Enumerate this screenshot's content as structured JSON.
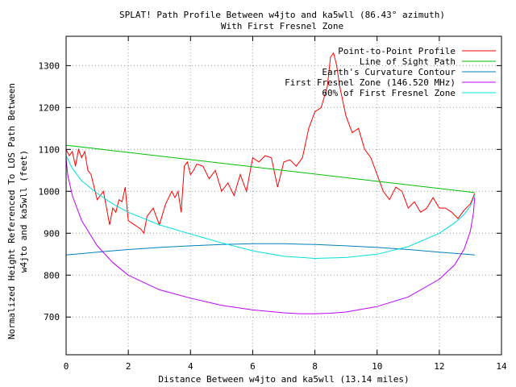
{
  "chart_data": {
    "type": "line",
    "title_line1": "SPLAT! Path Profile Between w4jto and ka5wll (86.43° azimuth)",
    "title_line2": "With First Fresnel Zone",
    "xlabel": "Distance Between w4jto and ka5wll (13.14 miles)",
    "ylabel_line1": "Normalized Height Referenced To LOS Path Between",
    "ylabel_line2": "w4jto and ka5wll (feet)",
    "xlim": [
      0,
      14
    ],
    "ylim": [
      610,
      1370
    ],
    "xticks": [
      0,
      2,
      4,
      6,
      8,
      10,
      12,
      14
    ],
    "yticks": [
      700,
      800,
      900,
      1000,
      1100,
      1200,
      1300
    ],
    "grid": true,
    "legend_position": "top-right",
    "series": [
      {
        "name": "Point-to-Point Profile",
        "color": "#ff0000",
        "x": [
          0,
          0.1,
          0.2,
          0.3,
          0.4,
          0.5,
          0.6,
          0.7,
          0.8,
          1.0,
          1.2,
          1.4,
          1.5,
          1.6,
          1.7,
          1.8,
          1.9,
          2.0,
          2.2,
          2.4,
          2.5,
          2.6,
          2.7,
          2.8,
          3.0,
          3.2,
          3.4,
          3.5,
          3.6,
          3.7,
          3.8,
          3.9,
          4.0,
          4.1,
          4.2,
          4.4,
          4.6,
          4.8,
          5.0,
          5.2,
          5.4,
          5.6,
          5.8,
          6.0,
          6.2,
          6.4,
          6.6,
          6.8,
          7.0,
          7.2,
          7.4,
          7.6,
          7.8,
          8.0,
          8.2,
          8.4,
          8.5,
          8.6,
          8.7,
          8.8,
          9.0,
          9.2,
          9.4,
          9.6,
          9.8,
          10.0,
          10.2,
          10.4,
          10.6,
          10.8,
          11.0,
          11.2,
          11.4,
          11.6,
          11.8,
          12.0,
          12.2,
          12.4,
          12.6,
          12.8,
          13.0,
          13.14
        ],
        "values": [
          1100,
          1085,
          1095,
          1060,
          1100,
          1080,
          1095,
          1050,
          1040,
          980,
          1000,
          920,
          960,
          950,
          980,
          975,
          1010,
          930,
          920,
          910,
          900,
          940,
          950,
          960,
          920,
          970,
          1000,
          985,
          1000,
          950,
          1060,
          1070,
          1040,
          1050,
          1065,
          1060,
          1030,
          1050,
          1000,
          1020,
          990,
          1040,
          1000,
          1080,
          1070,
          1085,
          1080,
          1010,
          1070,
          1075,
          1060,
          1080,
          1150,
          1190,
          1200,
          1250,
          1320,
          1330,
          1300,
          1250,
          1180,
          1140,
          1150,
          1100,
          1080,
          1040,
          1000,
          980,
          1010,
          1000,
          960,
          975,
          950,
          960,
          985,
          960,
          960,
          950,
          935,
          955,
          970,
          995
        ]
      },
      {
        "name": "Line of Sight Path",
        "color": "#00c000",
        "x": [
          0,
          13.14
        ],
        "values": [
          1110,
          997
        ]
      },
      {
        "name": "Earth's Curvature Contour",
        "color": "#0080c0",
        "x": [
          0,
          1,
          2,
          3,
          4,
          5,
          6,
          6.57,
          7,
          8,
          9,
          10,
          11,
          12,
          13,
          13.14
        ],
        "values": [
          848,
          855,
          861,
          866,
          870,
          873,
          875,
          875,
          875,
          873,
          870,
          866,
          861,
          855,
          849,
          848
        ]
      },
      {
        "name": "First Fresnel Zone (146.520 MHz)",
        "color": "#c000ff",
        "x": [
          0,
          0.05,
          0.2,
          0.5,
          1,
          1.5,
          2,
          3,
          4,
          5,
          6,
          7,
          7.5,
          8,
          8.5,
          9,
          10,
          11,
          12,
          12.5,
          12.8,
          13,
          13.1,
          13.14
        ],
        "values": [
          1080,
          1040,
          990,
          930,
          870,
          830,
          800,
          765,
          745,
          728,
          717,
          710,
          708,
          708,
          709,
          712,
          725,
          748,
          790,
          825,
          862,
          905,
          950,
          985
        ]
      },
      {
        "name": "60% of First Fresnel Zone",
        "color": "#00e0e0",
        "x": [
          0,
          0.2,
          0.5,
          1,
          1.5,
          2,
          3,
          4,
          5,
          6,
          7,
          8,
          9,
          10,
          11,
          12,
          12.5,
          12.8,
          13,
          13.14
        ],
        "values": [
          1085,
          1055,
          1025,
          995,
          970,
          950,
          920,
          898,
          877,
          858,
          845,
          840,
          842,
          850,
          868,
          900,
          925,
          945,
          965,
          990
        ]
      }
    ]
  }
}
